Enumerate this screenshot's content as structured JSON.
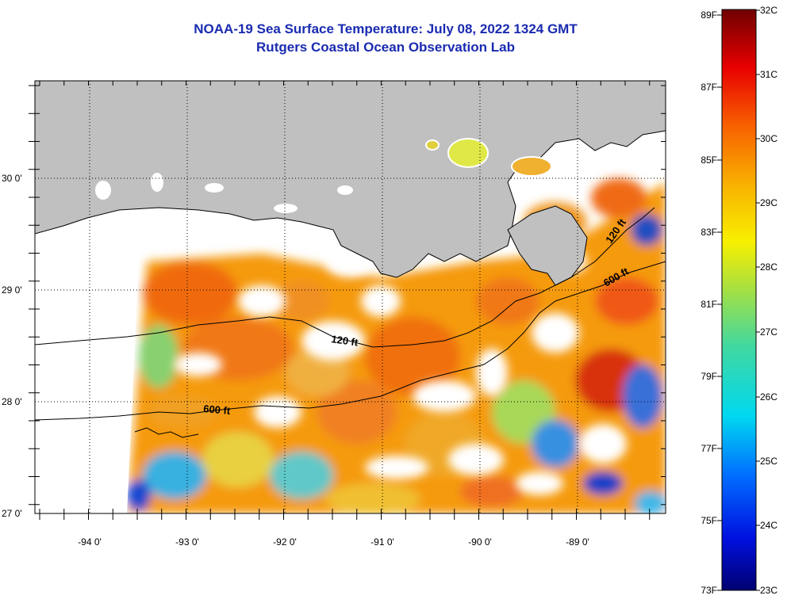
{
  "title_line1": "NOAA-19 Sea Surface Temperature:  July 08, 2022 1324 GMT",
  "title_line2": "Rutgers Coastal Ocean Observation Lab",
  "lon_labels": [
    "-94 0'",
    "-93 0'",
    "-92 0'",
    "-91 0'",
    "-90 0'",
    "-89 0'"
  ],
  "lat_labels": [
    "30 0'",
    "29 0'",
    "28 0'",
    "27 0'"
  ],
  "contours": {
    "c120_left": "120 ft",
    "c600_left": "600 ft",
    "c120_right": "120 ft",
    "c600_right": "600 ft"
  },
  "colorbar": {
    "fahrenheit": [
      "89F",
      "87F",
      "85F",
      "83F",
      "81F",
      "79F",
      "77F",
      "75F",
      "73F"
    ],
    "celsius": [
      "32C",
      "31C",
      "30C",
      "29C",
      "28C",
      "27C",
      "26C",
      "25C",
      "24C",
      "23C"
    ]
  },
  "colors": {
    "title": "#1a2bb0",
    "land": "#c0c0c0",
    "nodata": "#ffffff"
  }
}
